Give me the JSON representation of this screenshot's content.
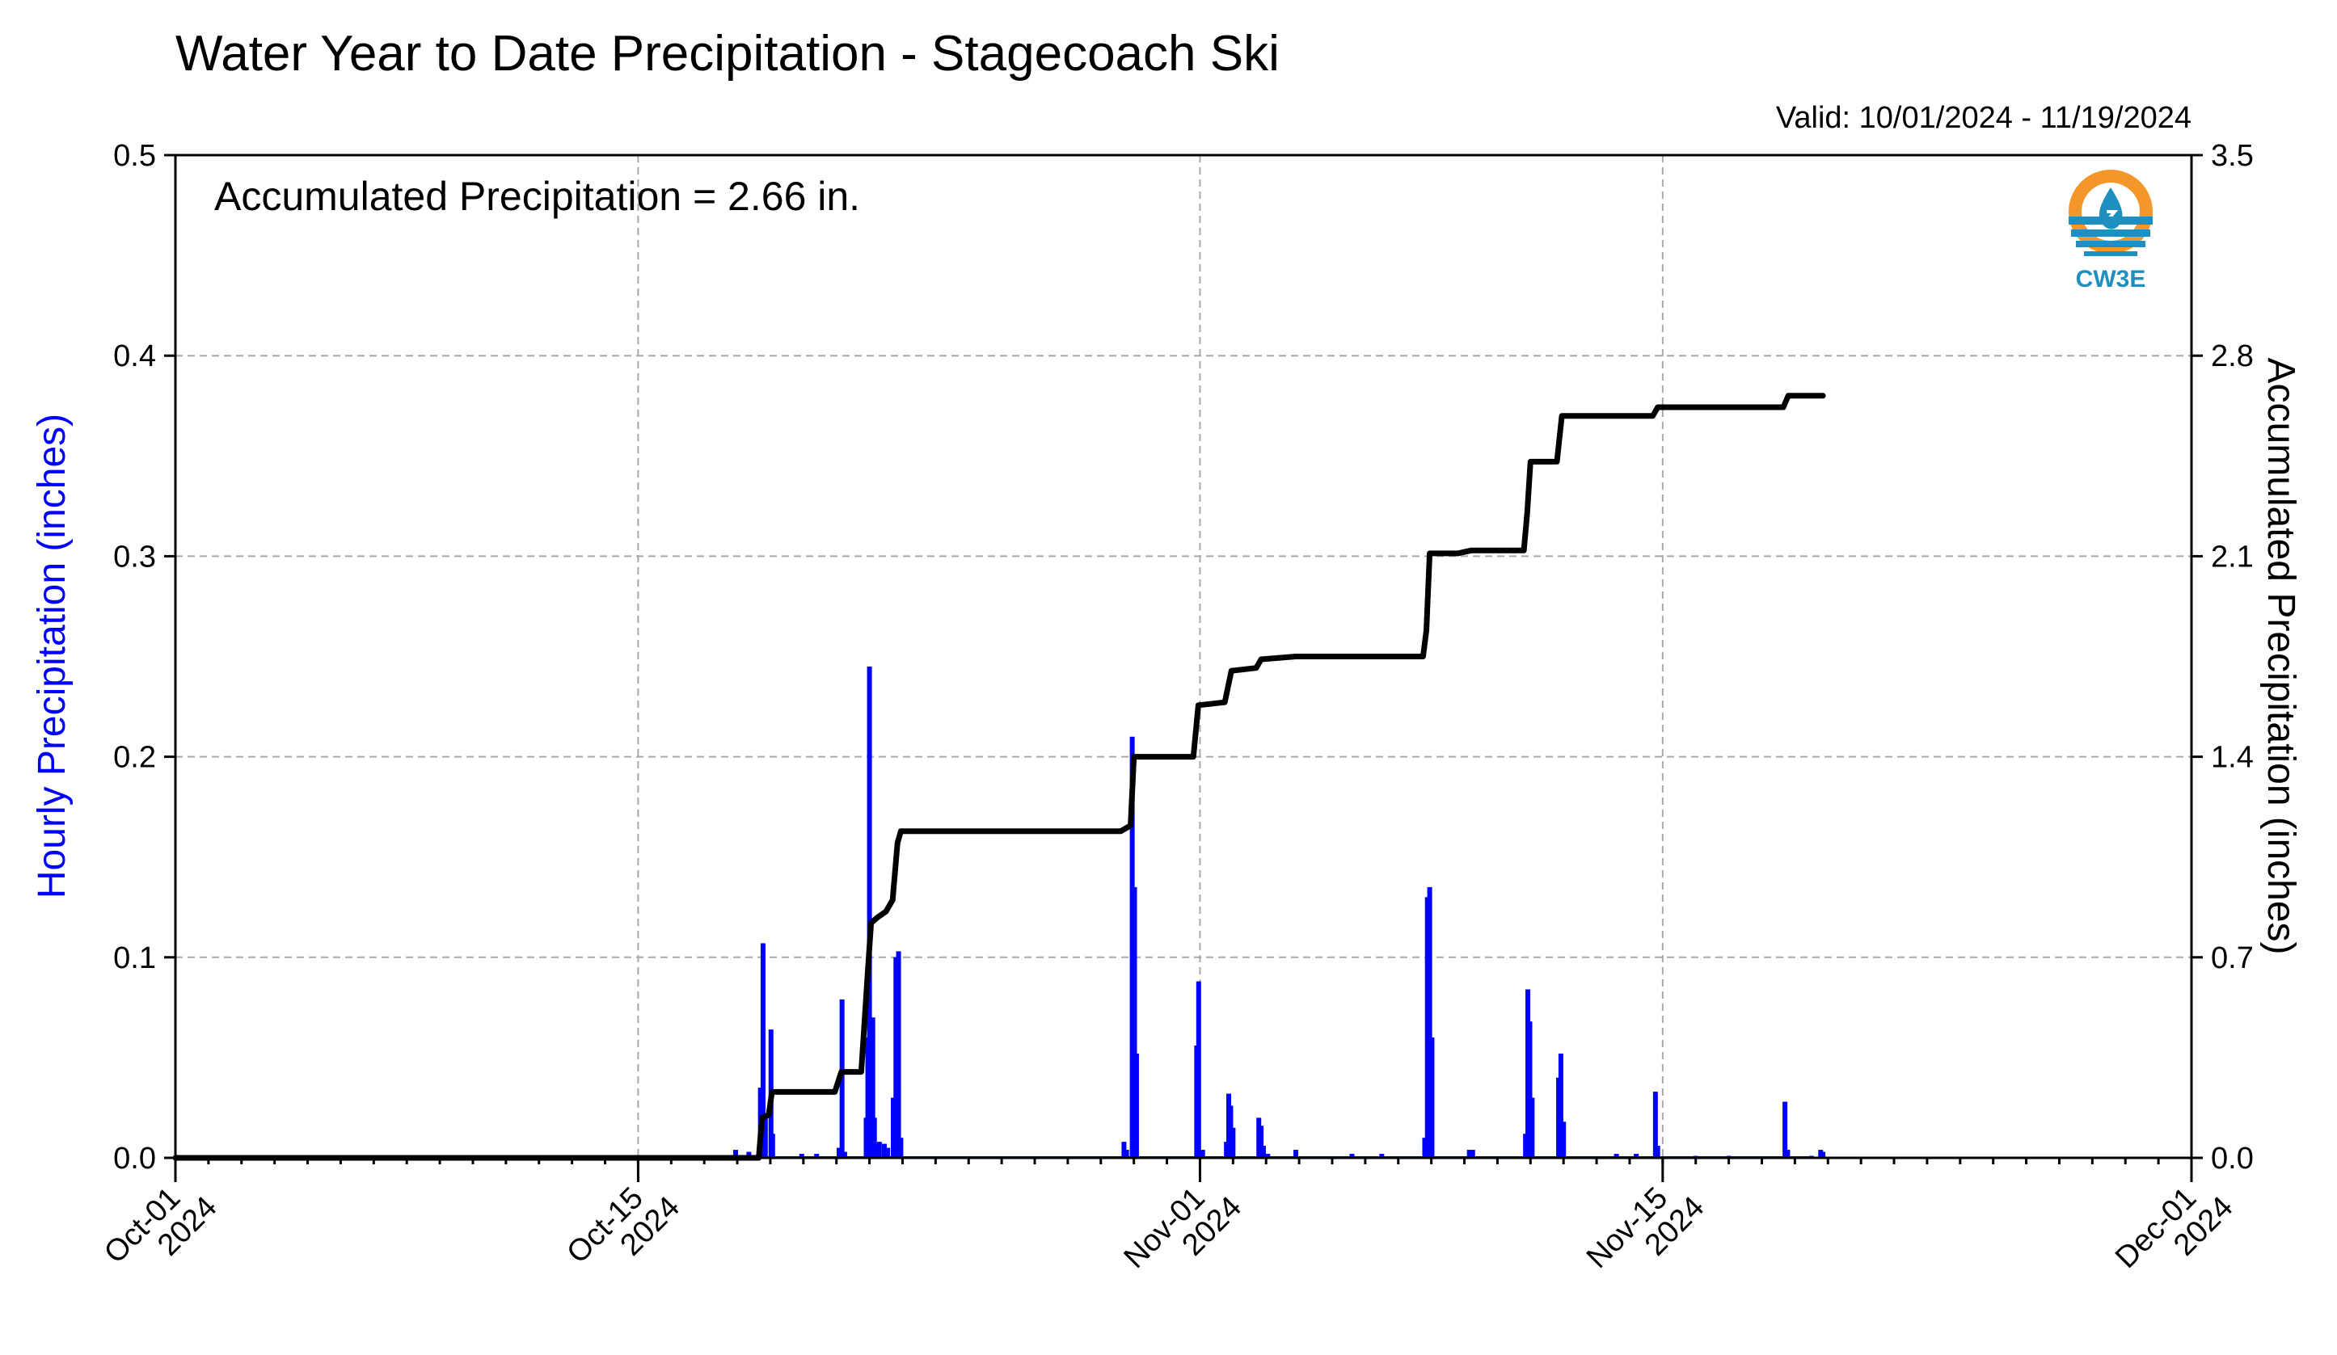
{
  "chart_data": {
    "type": "bar+line",
    "title": "Water Year to Date Precipitation - Stagecoach Ski",
    "valid_text": "Valid: 10/01/2024 - 11/19/2024",
    "annotation": "Accumulated Precipitation = 2.66 in.",
    "left_axis": {
      "label": "Hourly Precipitation (inches)",
      "min": 0,
      "max": 0.5,
      "ticks": [
        "0.0",
        "0.1",
        "0.2",
        "0.3",
        "0.4",
        "0.5"
      ],
      "color": "#0000ff"
    },
    "right_axis": {
      "label": "Accumulated Precipitation (inches)",
      "min": 0,
      "max": 3.5,
      "ticks": [
        "0.0",
        "0.7",
        "1.4",
        "2.1",
        "2.8",
        "3.5"
      ],
      "color": "#000000"
    },
    "x_axis": {
      "min_day": 0,
      "max_day": 61,
      "ticks": [
        {
          "day": 0,
          "line1": "Oct-01",
          "line2": "2024"
        },
        {
          "day": 14,
          "line1": "Oct-15",
          "line2": "2024"
        },
        {
          "day": 31,
          "line1": "Nov-01",
          "line2": "2024"
        },
        {
          "day": 45,
          "line1": "Nov-15",
          "line2": "2024"
        },
        {
          "day": 61,
          "line1": "Dec-01",
          "line2": "2024"
        }
      ],
      "minor_tick_interval_days": 1
    },
    "grid": true,
    "hourly_series": {
      "name": "Hourly Precipitation",
      "color": "#0000ff",
      "data_end_day": 49.5,
      "points": [
        [
          16.95,
          0.004
        ],
        [
          17.35,
          0.003
        ],
        [
          17.7,
          0.035
        ],
        [
          17.78,
          0.107
        ],
        [
          17.85,
          0.02
        ],
        [
          18.02,
          0.064
        ],
        [
          18.07,
          0.012
        ],
        [
          18.95,
          0.002
        ],
        [
          19.4,
          0.002
        ],
        [
          20.08,
          0.005
        ],
        [
          20.17,
          0.079
        ],
        [
          20.25,
          0.003
        ],
        [
          20.9,
          0.02
        ],
        [
          20.95,
          0.06
        ],
        [
          21.0,
          0.245
        ],
        [
          21.05,
          0.03
        ],
        [
          21.1,
          0.07
        ],
        [
          21.15,
          0.02
        ],
        [
          21.25,
          0.007
        ],
        [
          21.3,
          0.008
        ],
        [
          21.45,
          0.007
        ],
        [
          21.55,
          0.005
        ],
        [
          21.72,
          0.03
        ],
        [
          21.8,
          0.1
        ],
        [
          21.88,
          0.103
        ],
        [
          21.95,
          0.01
        ],
        [
          28.7,
          0.008
        ],
        [
          28.78,
          0.004
        ],
        [
          28.95,
          0.21
        ],
        [
          29.02,
          0.135
        ],
        [
          29.08,
          0.052
        ],
        [
          30.9,
          0.056
        ],
        [
          30.96,
          0.088
        ],
        [
          31.08,
          0.004
        ],
        [
          31.8,
          0.008
        ],
        [
          31.87,
          0.032
        ],
        [
          31.93,
          0.026
        ],
        [
          32.0,
          0.015
        ],
        [
          32.78,
          0.02
        ],
        [
          32.85,
          0.016
        ],
        [
          32.92,
          0.006
        ],
        [
          33.05,
          0.002
        ],
        [
          33.9,
          0.004
        ],
        [
          35.6,
          0.002
        ],
        [
          36.5,
          0.002
        ],
        [
          37.8,
          0.01
        ],
        [
          37.88,
          0.13
        ],
        [
          37.95,
          0.135
        ],
        [
          38.02,
          0.06
        ],
        [
          39.15,
          0.004
        ],
        [
          39.25,
          0.004
        ],
        [
          40.85,
          0.012
        ],
        [
          40.92,
          0.084
        ],
        [
          40.98,
          0.068
        ],
        [
          41.05,
          0.03
        ],
        [
          41.85,
          0.04
        ],
        [
          41.92,
          0.052
        ],
        [
          42.0,
          0.018
        ],
        [
          43.6,
          0.002
        ],
        [
          44.2,
          0.002
        ],
        [
          44.78,
          0.033
        ],
        [
          44.85,
          0.006
        ],
        [
          46.0,
          0.001
        ],
        [
          47.0,
          0.001
        ],
        [
          48.7,
          0.028
        ],
        [
          48.78,
          0.004
        ],
        [
          49.5,
          0.001
        ],
        [
          49.78,
          0.004
        ],
        [
          49.85,
          0.003
        ]
      ]
    },
    "accumulated_series": {
      "name": "Accumulated Precipitation",
      "color": "#000000",
      "points": [
        [
          0,
          0
        ],
        [
          17.65,
          0.0
        ],
        [
          17.75,
          0.14
        ],
        [
          17.95,
          0.15
        ],
        [
          18.05,
          0.23
        ],
        [
          19.95,
          0.23
        ],
        [
          20.15,
          0.3
        ],
        [
          20.75,
          0.3
        ],
        [
          20.95,
          0.65
        ],
        [
          21.05,
          0.82
        ],
        [
          21.25,
          0.84
        ],
        [
          21.5,
          0.86
        ],
        [
          21.7,
          0.9
        ],
        [
          21.85,
          1.1
        ],
        [
          21.95,
          1.14
        ],
        [
          28.6,
          1.14
        ],
        [
          28.9,
          1.16
        ],
        [
          29.0,
          1.4
        ],
        [
          30.8,
          1.4
        ],
        [
          30.95,
          1.58
        ],
        [
          31.75,
          1.59
        ],
        [
          31.95,
          1.7
        ],
        [
          32.7,
          1.71
        ],
        [
          32.85,
          1.74
        ],
        [
          33.9,
          1.75
        ],
        [
          37.75,
          1.75
        ],
        [
          37.85,
          1.84
        ],
        [
          37.95,
          2.11
        ],
        [
          38.8,
          2.11
        ],
        [
          39.2,
          2.12
        ],
        [
          40.8,
          2.12
        ],
        [
          40.9,
          2.25
        ],
        [
          41.0,
          2.43
        ],
        [
          41.8,
          2.43
        ],
        [
          41.95,
          2.59
        ],
        [
          44.7,
          2.59
        ],
        [
          44.85,
          2.62
        ],
        [
          48.65,
          2.62
        ],
        [
          48.8,
          2.66
        ],
        [
          49.85,
          2.66
        ]
      ]
    }
  },
  "logo": {
    "text": "CW3E",
    "colors": {
      "sun": "#f5962a",
      "water": "#1f8fbf"
    }
  }
}
